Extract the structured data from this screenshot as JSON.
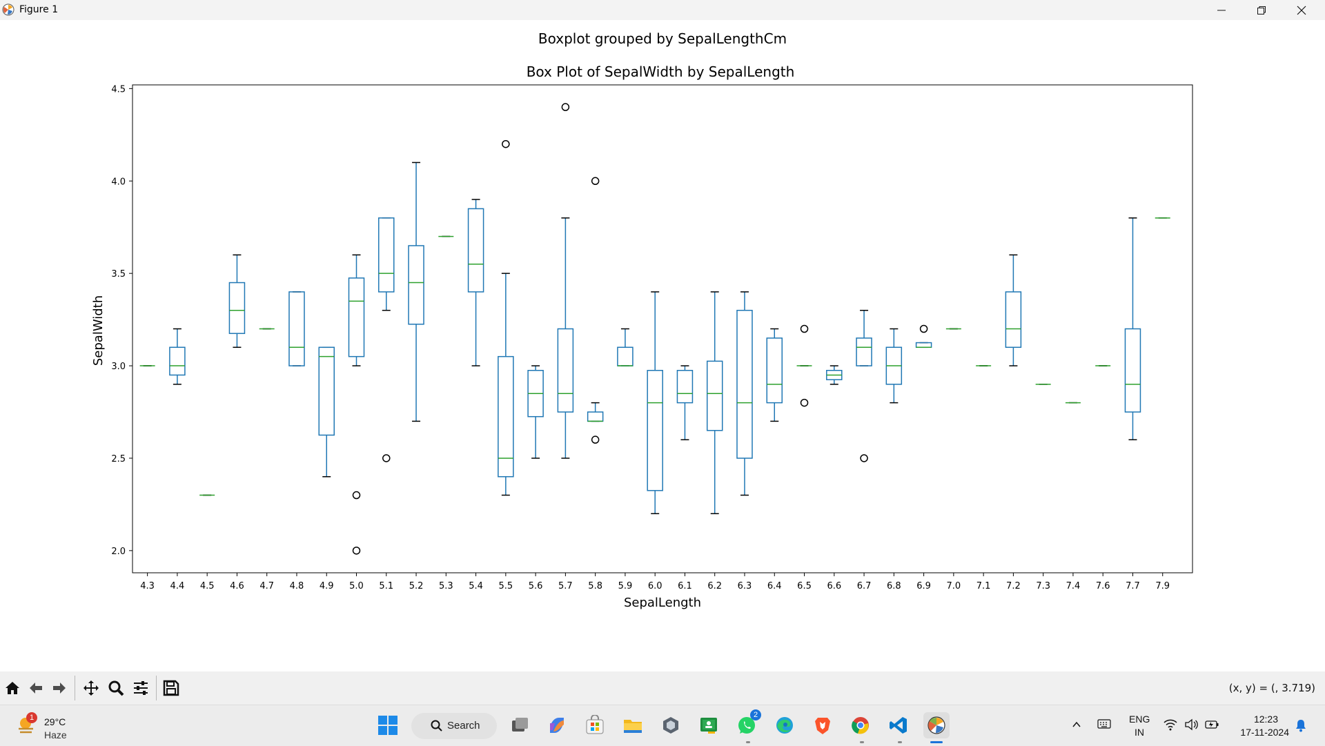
{
  "window": {
    "title": "Figure 1"
  },
  "toolbar": {
    "coords": "(x, y) = (, 3.719)",
    "tools": [
      "home-icon",
      "back-icon",
      "forward-icon",
      "pan-icon",
      "zoom-icon",
      "configure-icon",
      "save-icon"
    ]
  },
  "chart_data": {
    "type": "box",
    "suptitle": "Boxplot grouped by SepalLengthCm",
    "title": "Box Plot of SepalWidth by SepalLength",
    "xlabel": "SepalLength",
    "ylabel": "SepalWidth",
    "ylim": [
      1.88,
      4.52
    ],
    "yticks": [
      2.0,
      2.5,
      3.0,
      3.5,
      4.0,
      4.5
    ],
    "ytick_labels": [
      "2.0",
      "2.5",
      "3.0",
      "3.5",
      "4.0",
      "4.5"
    ],
    "grid": false,
    "colors": {
      "box": "#1f77b4",
      "median": "#2ca02c",
      "outlier": "#000000"
    },
    "categories": [
      "4.3",
      "4.4",
      "4.5",
      "4.6",
      "4.7",
      "4.8",
      "4.9",
      "5.0",
      "5.1",
      "5.2",
      "5.3",
      "5.4",
      "5.5",
      "5.6",
      "5.7",
      "5.8",
      "5.9",
      "6.0",
      "6.1",
      "6.2",
      "6.3",
      "6.4",
      "6.5",
      "6.6",
      "6.7",
      "6.8",
      "6.9",
      "7.0",
      "7.1",
      "7.2",
      "7.3",
      "7.4",
      "7.6",
      "7.7",
      "7.9"
    ],
    "boxes": [
      {
        "whislo": 3.0,
        "q1": 3.0,
        "med": 3.0,
        "q3": 3.0,
        "whishi": 3.0,
        "fliers": []
      },
      {
        "whislo": 2.9,
        "q1": 2.95,
        "med": 3.0,
        "q3": 3.1,
        "whishi": 3.2,
        "fliers": []
      },
      {
        "whislo": 2.3,
        "q1": 2.3,
        "med": 2.3,
        "q3": 2.3,
        "whishi": 2.3,
        "fliers": []
      },
      {
        "whislo": 3.1,
        "q1": 3.175,
        "med": 3.3,
        "q3": 3.45,
        "whishi": 3.6,
        "fliers": []
      },
      {
        "whislo": 3.2,
        "q1": 3.2,
        "med": 3.2,
        "q3": 3.2,
        "whishi": 3.2,
        "fliers": []
      },
      {
        "whislo": 3.0,
        "q1": 3.0,
        "med": 3.1,
        "q3": 3.4,
        "whishi": 3.4,
        "fliers": []
      },
      {
        "whislo": 2.4,
        "q1": 2.625,
        "med": 3.05,
        "q3": 3.1,
        "whishi": 3.1,
        "fliers": []
      },
      {
        "whislo": 3.0,
        "q1": 3.05,
        "med": 3.35,
        "q3": 3.475,
        "whishi": 3.6,
        "fliers": [
          2.3,
          2.0
        ]
      },
      {
        "whislo": 3.3,
        "q1": 3.4,
        "med": 3.5,
        "q3": 3.8,
        "whishi": 3.8,
        "fliers": [
          2.5
        ]
      },
      {
        "whislo": 2.7,
        "q1": 3.225,
        "med": 3.45,
        "q3": 3.65,
        "whishi": 4.1,
        "fliers": []
      },
      {
        "whislo": 3.7,
        "q1": 3.7,
        "med": 3.7,
        "q3": 3.7,
        "whishi": 3.7,
        "fliers": []
      },
      {
        "whislo": 3.0,
        "q1": 3.4,
        "med": 3.55,
        "q3": 3.85,
        "whishi": 3.9,
        "fliers": []
      },
      {
        "whislo": 2.3,
        "q1": 2.4,
        "med": 2.5,
        "q3": 3.05,
        "whishi": 3.5,
        "fliers": [
          4.2
        ]
      },
      {
        "whislo": 2.5,
        "q1": 2.725,
        "med": 2.85,
        "q3": 2.975,
        "whishi": 3.0,
        "fliers": []
      },
      {
        "whislo": 2.5,
        "q1": 2.75,
        "med": 2.85,
        "q3": 3.2,
        "whishi": 3.8,
        "fliers": [
          4.4
        ]
      },
      {
        "whislo": 2.7,
        "q1": 2.7,
        "med": 2.7,
        "q3": 2.75,
        "whishi": 2.8,
        "fliers": [
          4.0,
          2.6
        ]
      },
      {
        "whislo": 3.0,
        "q1": 3.0,
        "med": 3.0,
        "q3": 3.1,
        "whishi": 3.2,
        "fliers": []
      },
      {
        "whislo": 2.2,
        "q1": 2.325,
        "med": 2.8,
        "q3": 2.975,
        "whishi": 3.4,
        "fliers": []
      },
      {
        "whislo": 2.6,
        "q1": 2.8,
        "med": 2.85,
        "q3": 2.975,
        "whishi": 3.0,
        "fliers": []
      },
      {
        "whislo": 2.2,
        "q1": 2.65,
        "med": 2.85,
        "q3": 3.025,
        "whishi": 3.4,
        "fliers": []
      },
      {
        "whislo": 2.3,
        "q1": 2.5,
        "med": 2.8,
        "q3": 3.3,
        "whishi": 3.4,
        "fliers": []
      },
      {
        "whislo": 2.7,
        "q1": 2.8,
        "med": 2.9,
        "q3": 3.15,
        "whishi": 3.2,
        "fliers": []
      },
      {
        "whislo": 3.0,
        "q1": 3.0,
        "med": 3.0,
        "q3": 3.0,
        "whishi": 3.0,
        "fliers": [
          3.2,
          2.8
        ]
      },
      {
        "whislo": 2.9,
        "q1": 2.925,
        "med": 2.95,
        "q3": 2.975,
        "whishi": 3.0,
        "fliers": []
      },
      {
        "whislo": 3.0,
        "q1": 3.0,
        "med": 3.1,
        "q3": 3.15,
        "whishi": 3.3,
        "fliers": [
          2.5
        ]
      },
      {
        "whislo": 2.8,
        "q1": 2.9,
        "med": 3.0,
        "q3": 3.1,
        "whishi": 3.2,
        "fliers": []
      },
      {
        "whislo": 3.1,
        "q1": 3.1,
        "med": 3.1,
        "q3": 3.125,
        "whishi": 3.125,
        "fliers": [
          3.2
        ]
      },
      {
        "whislo": 3.2,
        "q1": 3.2,
        "med": 3.2,
        "q3": 3.2,
        "whishi": 3.2,
        "fliers": []
      },
      {
        "whislo": 3.0,
        "q1": 3.0,
        "med": 3.0,
        "q3": 3.0,
        "whishi": 3.0,
        "fliers": []
      },
      {
        "whislo": 3.0,
        "q1": 3.1,
        "med": 3.2,
        "q3": 3.4,
        "whishi": 3.6,
        "fliers": []
      },
      {
        "whislo": 2.9,
        "q1": 2.9,
        "med": 2.9,
        "q3": 2.9,
        "whishi": 2.9,
        "fliers": []
      },
      {
        "whislo": 2.8,
        "q1": 2.8,
        "med": 2.8,
        "q3": 2.8,
        "whishi": 2.8,
        "fliers": []
      },
      {
        "whislo": 3.0,
        "q1": 3.0,
        "med": 3.0,
        "q3": 3.0,
        "whishi": 3.0,
        "fliers": []
      },
      {
        "whislo": 2.6,
        "q1": 2.75,
        "med": 2.9,
        "q3": 3.2,
        "whishi": 3.8,
        "fliers": []
      },
      {
        "whislo": 3.8,
        "q1": 3.8,
        "med": 3.8,
        "q3": 3.8,
        "whishi": 3.8,
        "fliers": []
      }
    ]
  },
  "taskbar": {
    "weather": {
      "badge": "1",
      "temp": "29°C",
      "condition": "Haze"
    },
    "search_label": "Search",
    "whatsapp_badge": "2",
    "apps": [
      "task-view-icon",
      "copilot-icon",
      "store-icon",
      "file-explorer-icon",
      "app-cube-icon",
      "classroom-icon",
      "whatsapp-icon",
      "edge-icon",
      "brave-icon",
      "chrome-icon",
      "vscode-icon",
      "matplotlib-icon"
    ],
    "language": [
      "ENG",
      "IN"
    ],
    "time": "12:23",
    "date": "17-11-2024"
  }
}
